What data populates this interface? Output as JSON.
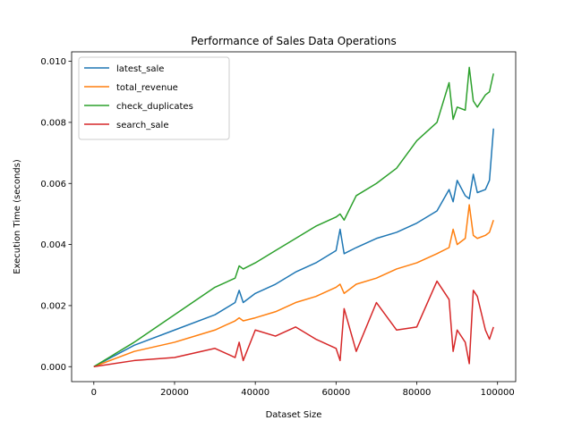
{
  "chart_data": {
    "type": "line",
    "title": "Performance of Sales Data Operations",
    "xlabel": "Dataset Size",
    "ylabel": "Execution Time (seconds)",
    "xlim": [
      -5500,
      104500
    ],
    "ylim": [
      -0.00049,
      0.01031
    ],
    "xticks": [
      0,
      20000,
      40000,
      60000,
      80000,
      100000
    ],
    "xtick_labels": [
      "0",
      "20000",
      "40000",
      "60000",
      "80000",
      "100000"
    ],
    "yticks": [
      0.0,
      0.002,
      0.004,
      0.006,
      0.008,
      0.01
    ],
    "ytick_labels": [
      "0.000",
      "0.002",
      "0.004",
      "0.006",
      "0.008",
      "0.010"
    ],
    "grid": false,
    "legend_position": "top-left",
    "x": [
      0,
      10000,
      20000,
      30000,
      35000,
      36000,
      37000,
      40000,
      45000,
      50000,
      55000,
      60000,
      61000,
      62000,
      65000,
      70000,
      75000,
      80000,
      85000,
      88000,
      89000,
      90000,
      92000,
      93000,
      94000,
      95000,
      97000,
      98000,
      99000
    ],
    "series": [
      {
        "name": "latest_sale",
        "color": "#1f77b4",
        "values": [
          0.0,
          0.0007,
          0.0012,
          0.0017,
          0.0021,
          0.0025,
          0.0021,
          0.0024,
          0.0027,
          0.0031,
          0.0034,
          0.0038,
          0.0045,
          0.0037,
          0.0039,
          0.0042,
          0.0044,
          0.0047,
          0.0051,
          0.0058,
          0.0054,
          0.0061,
          0.0056,
          0.0055,
          0.0063,
          0.0057,
          0.0058,
          0.0061,
          0.0078
        ]
      },
      {
        "name": "total_revenue",
        "color": "#ff7f0e",
        "values": [
          0.0,
          0.0005,
          0.0008,
          0.0012,
          0.0015,
          0.0016,
          0.0015,
          0.0016,
          0.0018,
          0.0021,
          0.0023,
          0.0026,
          0.0027,
          0.0024,
          0.0027,
          0.0029,
          0.0032,
          0.0034,
          0.0037,
          0.0039,
          0.0045,
          0.004,
          0.0042,
          0.0053,
          0.0043,
          0.0042,
          0.0043,
          0.0044,
          0.0048
        ]
      },
      {
        "name": "check_duplicates",
        "color": "#2ca02c",
        "values": [
          0.0,
          0.0008,
          0.0017,
          0.0026,
          0.0029,
          0.0033,
          0.0032,
          0.0034,
          0.0038,
          0.0042,
          0.0046,
          0.0049,
          0.005,
          0.0048,
          0.0056,
          0.006,
          0.0065,
          0.0074,
          0.008,
          0.0093,
          0.0081,
          0.0085,
          0.0084,
          0.0098,
          0.0087,
          0.0085,
          0.0089,
          0.009,
          0.0096
        ]
      },
      {
        "name": "search_sale",
        "color": "#d62728",
        "values": [
          0.0,
          0.0002,
          0.0003,
          0.0006,
          0.0003,
          0.0008,
          0.0002,
          0.0012,
          0.001,
          0.0013,
          0.0009,
          0.0006,
          0.0002,
          0.0019,
          0.0005,
          0.0021,
          0.0012,
          0.0013,
          0.0028,
          0.0022,
          0.0005,
          0.0012,
          0.0008,
          0.0001,
          0.0025,
          0.0023,
          0.0012,
          0.0009,
          0.0013
        ]
      }
    ]
  }
}
